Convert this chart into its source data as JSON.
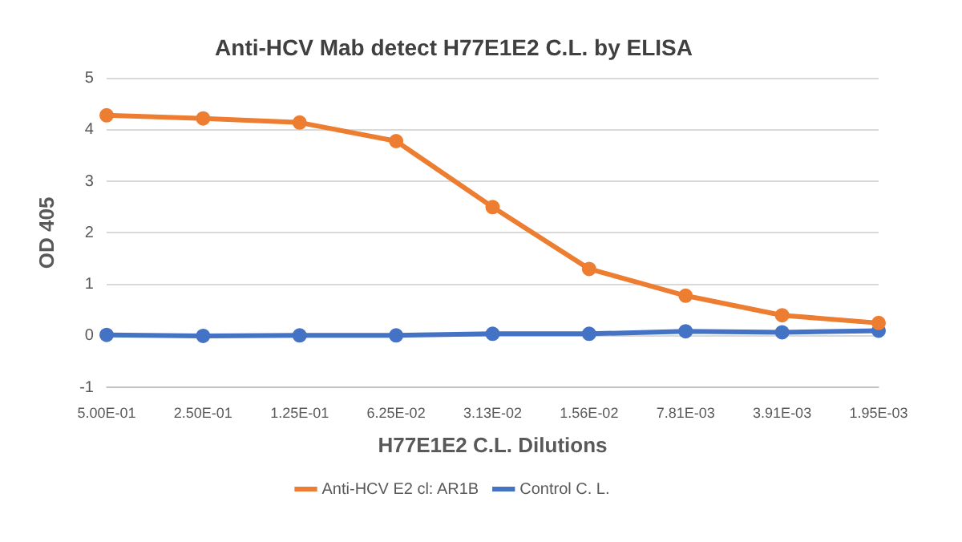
{
  "chart_data": {
    "type": "line",
    "title": "Anti-HCV Mab detect H77E1E2 C.L. by ELISA",
    "xlabel": "H77E1E2 C.L. Dilutions",
    "ylabel": "OD 405",
    "categories": [
      "5.00E-01",
      "2.50E-01",
      "1.25E-01",
      "6.25E-02",
      "3.13E-02",
      "1.56E-02",
      "7.81E-03",
      "3.91E-03",
      "1.95E-03"
    ],
    "series": [
      {
        "name": "Anti-HCV E2 cl: AR1B",
        "color": "#ed7d31",
        "values": [
          4.28,
          4.22,
          4.14,
          3.78,
          2.5,
          1.3,
          0.78,
          0.4,
          0.25
        ]
      },
      {
        "name": "Control C. L.",
        "color": "#4472c4",
        "values": [
          0.02,
          0,
          0.01,
          0.01,
          0.04,
          0.04,
          0.09,
          0.07,
          0.1
        ]
      }
    ],
    "ylim": [
      -1,
      5
    ],
    "yticks": [
      -1,
      0,
      1,
      2,
      3,
      4,
      5
    ],
    "grid": "y",
    "legend": "bottom",
    "marker": "circle",
    "line_style": "solid"
  }
}
